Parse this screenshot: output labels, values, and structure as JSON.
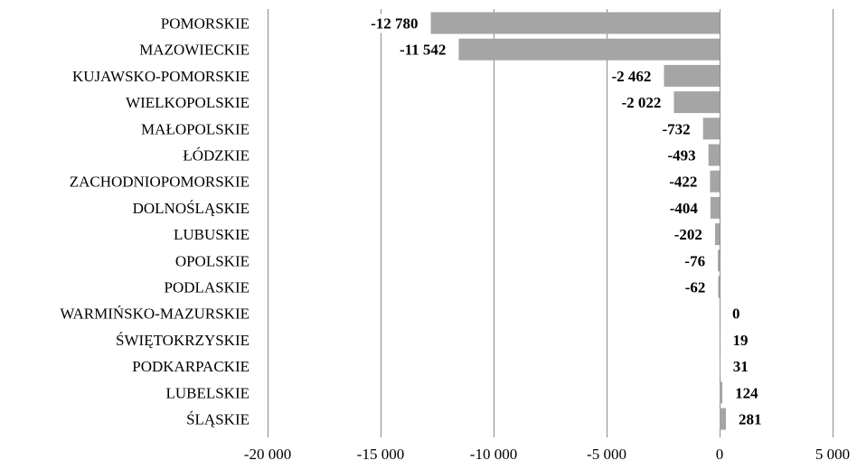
{
  "chart_data": {
    "type": "bar",
    "orientation": "horizontal",
    "categories": [
      "POMORSKIE",
      "MAZOWIECKIE",
      "KUJAWSKO-POMORSKIE",
      "WIELKOPOLSKIE",
      "MAŁOPOLSKIE",
      "ŁÓDZKIE",
      "ZACHODNIOPOMORSKIE",
      "DOLNOŚLĄSKIE",
      "LUBUSKIE",
      "OPOLSKIE",
      "PODLASKIE",
      "WARMIŃSKO-MAZURSKIE",
      "ŚWIĘTOKRZYSKIE",
      "PODKARPACKIE",
      "LUBELSKIE",
      "ŚLĄSKIE"
    ],
    "values": [
      -12780,
      -11542,
      -2462,
      -2022,
      -732,
      -493,
      -422,
      -404,
      -202,
      -76,
      -62,
      0,
      19,
      31,
      124,
      281
    ],
    "data_labels": [
      "-12 780",
      "-11 542",
      "-2 462",
      "-2 022",
      "-732",
      "-493",
      "-422",
      "-404",
      "-202",
      "-76",
      "-62",
      "0",
      "19",
      "31",
      "124",
      "281"
    ],
    "x_ticks": [
      -20000,
      -15000,
      -10000,
      -5000,
      0,
      5000
    ],
    "x_tick_labels": [
      "-20 000",
      "-15 000",
      "-10 000",
      "-5 000",
      "0",
      "5 000"
    ],
    "xlim": [
      -20000,
      5000
    ],
    "xlabel": "",
    "ylabel": "",
    "title": "",
    "grid": "vertical",
    "legend": "none",
    "colors": {
      "bar": "#a5a5a5",
      "grid": "#8c8c8c"
    }
  }
}
